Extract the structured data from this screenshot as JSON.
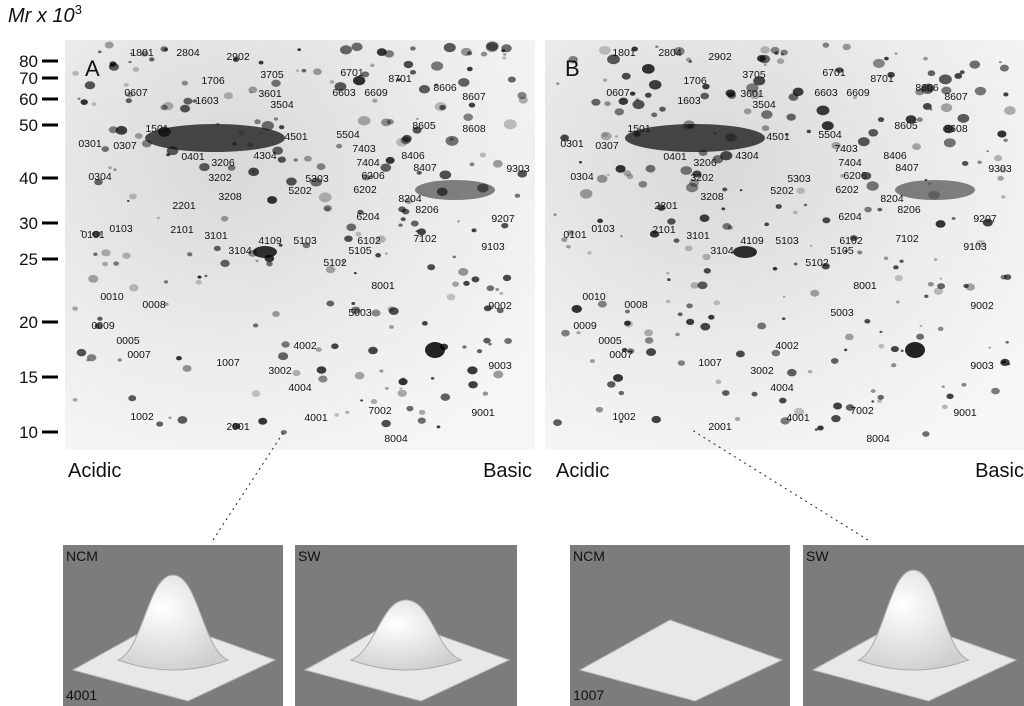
{
  "axis": {
    "title": "Mr x 10",
    "title_exp": "3",
    "ticks": [
      80,
      70,
      60,
      50,
      40,
      30,
      25,
      20,
      15,
      10
    ]
  },
  "gels": [
    {
      "label": "A",
      "left_label": "Acidic",
      "right_label": "Basic",
      "spots": [
        "1801",
        "2804",
        "2902",
        "1706",
        "3705",
        "6701",
        "8701",
        "8606",
        "0607",
        "1603",
        "3601",
        "6603",
        "6609",
        "8607",
        "3504",
        "1501",
        "4501",
        "5504",
        "8605",
        "8608",
        "0301",
        "0307",
        "0401",
        "3206",
        "4304",
        "7403",
        "7404",
        "8406",
        "8407",
        "9303",
        "0304",
        "3202",
        "5303",
        "6206",
        "3208",
        "5202",
        "6202",
        "8204",
        "8206",
        "2201",
        "0103",
        "2101",
        "3101",
        "6204",
        "9207",
        "0101",
        "4109",
        "5103",
        "6102",
        "7102",
        "9103",
        "3104",
        "5105",
        "5102",
        "8001",
        "0010",
        "0008",
        "9002",
        "0009",
        "5003",
        "0005",
        "4002",
        "0007",
        "9003",
        "1007",
        "3002",
        "4004",
        "9001",
        "7002",
        "1002",
        "4001",
        "2001",
        "8004"
      ]
    },
    {
      "label": "B",
      "left_label": "Acidic",
      "right_label": "Basic",
      "spots": [
        "1801",
        "2804",
        "2902",
        "1706",
        "3705",
        "6701",
        "8701",
        "8606",
        "0607",
        "1603",
        "3601",
        "6603",
        "6609",
        "8607",
        "3504",
        "1501",
        "4501",
        "5504",
        "8605",
        "8608",
        "0301",
        "0307",
        "0401",
        "3206",
        "4304",
        "7403",
        "7404",
        "8406",
        "8407",
        "9303",
        "0304",
        "3202",
        "5303",
        "6206",
        "3208",
        "5202",
        "6202",
        "8204",
        "8206",
        "2201",
        "0103",
        "2101",
        "3101",
        "6204",
        "9207",
        "0101",
        "4109",
        "5103",
        "6102",
        "7102",
        "9103",
        "3104",
        "5105",
        "5102",
        "8001",
        "0010",
        "0008",
        "9002",
        "0009",
        "5003",
        "0005",
        "4002",
        "0007",
        "9003",
        "1007",
        "3002",
        "4004",
        "9001",
        "7002",
        "1002",
        "4001",
        "2001",
        "8004"
      ]
    }
  ],
  "insets": [
    {
      "id": "4001",
      "panels": [
        "NCM",
        "SW"
      ]
    },
    {
      "id": "1007",
      "panels": [
        "NCM",
        "SW"
      ]
    }
  ]
}
